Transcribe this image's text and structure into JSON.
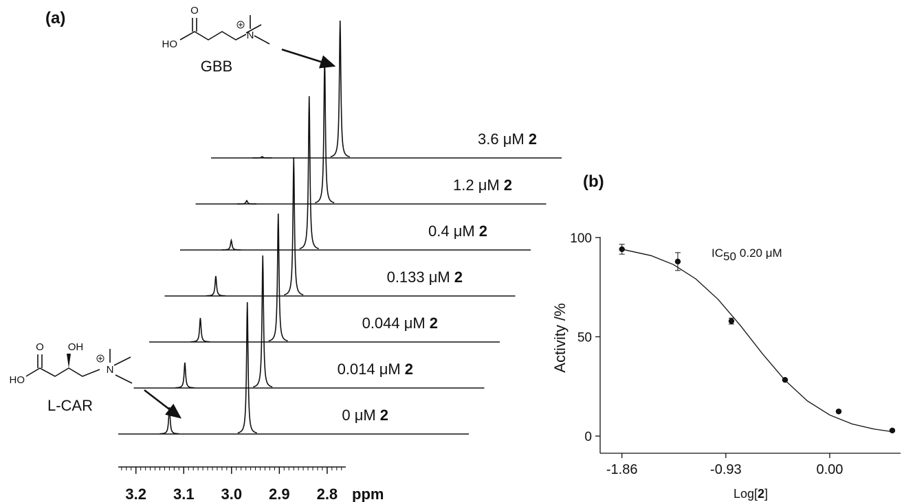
{
  "chart_data": [
    {
      "type": "stacked-spectra",
      "panel_label": "(a)",
      "compound_label": "2",
      "color": "#111111",
      "x": [
        3.13,
        2.967
      ],
      "series": [
        {
          "name": "0 μM",
          "values": [
            39,
            192
          ]
        },
        {
          "name": "0.014 μM",
          "values": [
            37,
            193
          ]
        },
        {
          "name": "0.044 μM",
          "values": [
            35,
            187
          ]
        },
        {
          "name": "0.133 μM",
          "values": [
            29,
            202
          ]
        },
        {
          "name": "0.4 μM",
          "values": [
            14,
            224
          ]
        },
        {
          "name": "1.2 μM",
          "values": [
            5,
            213
          ]
        },
        {
          "name": "3.6 μM",
          "values": [
            2,
            200
          ]
        }
      ],
      "xlim": [
        3.237,
        2.761
      ],
      "xticks": [
        3.2,
        3.1,
        {
          "value": 3.0,
          "label": "3.0"
        },
        2.9,
        2.8
      ],
      "minor_tick_step": 0.01,
      "xlabel": "ppm",
      "structures": [
        {
          "name": "GBB",
          "atoms": [
            "O",
            "HO",
            "N"
          ]
        },
        {
          "name": "L-CAR",
          "atoms": [
            "O",
            "HO",
            "OH",
            "N"
          ]
        }
      ]
    },
    {
      "type": "scatter",
      "panel_label": "(b)",
      "color": "#111111",
      "x": [
        -1.86,
        -1.36,
        -0.88,
        -0.4,
        0.08,
        0.56
      ],
      "values": [
        94.1,
        87.9,
        57.9,
        28.3,
        12.4,
        2.8
      ],
      "errors": [
        2.5,
        4.5,
        1.5,
        0.5,
        0.5,
        0.5
      ],
      "fit": {
        "x": [
          -1.86,
          -1.6,
          -1.4,
          -1.2,
          -1.0,
          -0.8,
          -0.6,
          -0.4,
          -0.2,
          0.0,
          0.2,
          0.4,
          0.56
        ],
        "y": [
          94.1,
          90.9,
          86.4,
          79.2,
          68.9,
          55.7,
          41.3,
          28.1,
          17.7,
          10.6,
          6.1,
          3.5,
          2.2
        ]
      },
      "annotation": [
        "IC",
        "50",
        "0.20 μM"
      ],
      "xlim": [
        -2.055,
        0.634
      ],
      "ylim": [
        -8.65,
        100.3
      ],
      "xticks": [
        -1.86,
        -0.93,
        {
          "value": 0,
          "label": "0.00"
        }
      ],
      "yticks": [
        0,
        50,
        100
      ],
      "ylabel": "Activity /%",
      "xlabel": [
        "Log[",
        "2",
        "]"
      ]
    }
  ]
}
